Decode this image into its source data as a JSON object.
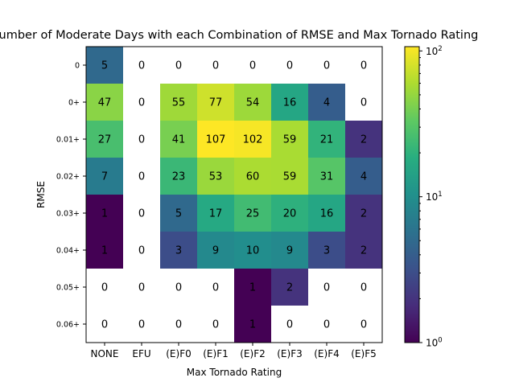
{
  "chart_data": {
    "type": "heatmap",
    "title": "Number of Moderate Days with each Combination of RMSE and Max Tornado Rating",
    "xlabel": "Max Tornado Rating",
    "ylabel": "RMSE",
    "x_categories": [
      "NONE",
      "EFU",
      "(E)F0",
      "(E)F1",
      "(E)F2",
      "(E)F3",
      "(E)F4",
      "(E)F5"
    ],
    "y_categories": [
      "0",
      "0+",
      "0.01+",
      "0.02+",
      "0.03+",
      "0.04+",
      "0.05+",
      "0.06+"
    ],
    "values": [
      [
        5,
        0,
        0,
        0,
        0,
        0,
        0,
        0
      ],
      [
        47,
        0,
        55,
        77,
        54,
        16,
        4,
        0
      ],
      [
        27,
        0,
        41,
        107,
        102,
        59,
        21,
        2
      ],
      [
        7,
        0,
        23,
        53,
        60,
        59,
        31,
        4
      ],
      [
        1,
        0,
        5,
        17,
        25,
        20,
        16,
        2
      ],
      [
        1,
        0,
        3,
        9,
        10,
        9,
        3,
        2
      ],
      [
        0,
        0,
        0,
        0,
        1,
        2,
        0,
        0
      ],
      [
        0,
        0,
        0,
        0,
        1,
        0,
        0,
        0
      ]
    ],
    "zero_cells_color": "#ffffff",
    "colorbar": {
      "scale": "log",
      "range": [
        1,
        107
      ],
      "colormap": "viridis",
      "tick_labels": [
        {
          "value": 1,
          "base": "10",
          "exp": "0"
        },
        {
          "value": 10,
          "base": "10",
          "exp": "1"
        },
        {
          "value": 100,
          "base": "10",
          "exp": "2"
        }
      ]
    }
  }
}
